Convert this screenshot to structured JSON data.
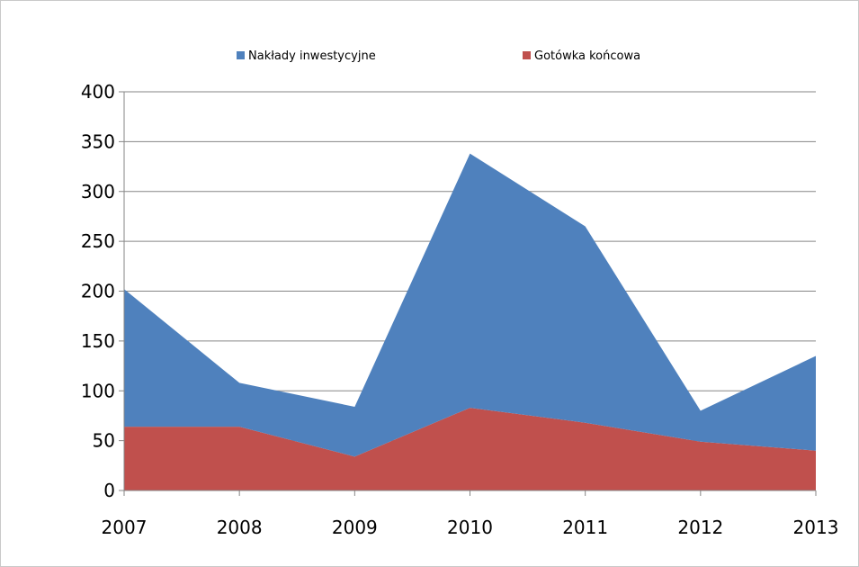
{
  "chart_data": {
    "type": "area",
    "stacked": true,
    "categories": [
      "2007",
      "2008",
      "2009",
      "2010",
      "2011",
      "2012",
      "2013"
    ],
    "series": [
      {
        "name": "Gotówka końcowa",
        "color": "#C0504D",
        "values": [
          64,
          64,
          34,
          83,
          68,
          49,
          40
        ]
      },
      {
        "name": "Nakłady inwestycyjne",
        "color": "#4F81BD",
        "values": [
          138,
          44,
          50,
          255,
          197,
          31,
          95
        ]
      }
    ],
    "legend_order": [
      "Nakłady inwestycyjne",
      "Gotówka końcowa"
    ],
    "legend_position": "top",
    "ylim": [
      0,
      400
    ],
    "yticks": [
      0,
      50,
      100,
      150,
      200,
      250,
      300,
      350,
      400
    ],
    "grid": true,
    "gridline_color": "#868686",
    "axis_color": "#868686"
  }
}
